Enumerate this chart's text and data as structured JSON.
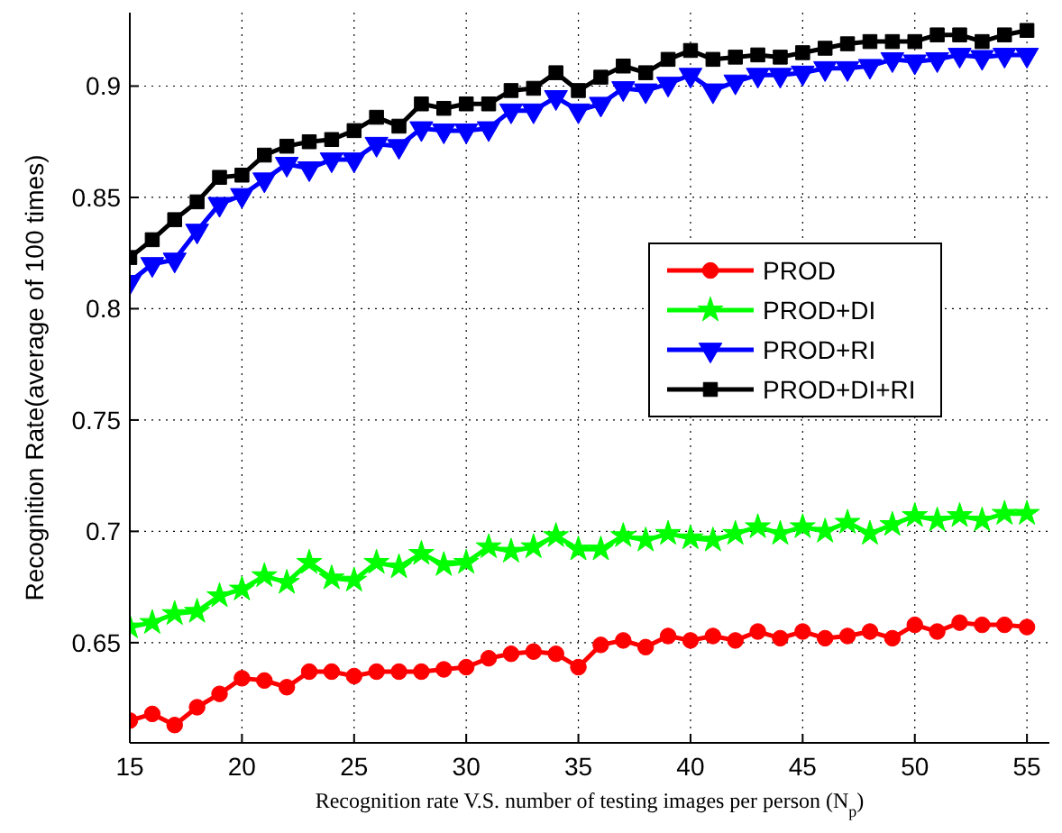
{
  "chart_data": {
    "type": "line",
    "xlabel": "Recognition rate V.S. number of testing images per person (N$_{p}$)",
    "ylabel": "Recognition Rate(average of 100 times)",
    "x": [
      15,
      16,
      17,
      18,
      19,
      20,
      21,
      22,
      23,
      24,
      25,
      26,
      27,
      28,
      29,
      30,
      31,
      32,
      33,
      34,
      35,
      36,
      37,
      38,
      39,
      40,
      41,
      42,
      43,
      44,
      45,
      46,
      47,
      48,
      49,
      50,
      51,
      52,
      53,
      54,
      55
    ],
    "xlim": [
      15,
      56
    ],
    "ylim": [
      0.605,
      0.933
    ],
    "xticks": [
      15,
      20,
      25,
      30,
      35,
      40,
      45,
      50,
      55
    ],
    "yticks": [
      0.65,
      0.7,
      0.75,
      0.8,
      0.85,
      0.9
    ],
    "grid": true,
    "legend": "right",
    "line_style": "solid",
    "series": [
      {
        "name": "PROD",
        "color": "#ff0000",
        "marker": "circle",
        "values": [
          0.615,
          0.618,
          0.613,
          0.621,
          0.627,
          0.634,
          0.633,
          0.63,
          0.637,
          0.637,
          0.635,
          0.637,
          0.637,
          0.637,
          0.638,
          0.639,
          0.643,
          0.645,
          0.646,
          0.645,
          0.639,
          0.649,
          0.651,
          0.648,
          0.653,
          0.651,
          0.653,
          0.651,
          0.655,
          0.652,
          0.655,
          0.652,
          0.653,
          0.655,
          0.652,
          0.658,
          0.655,
          0.659,
          0.658,
          0.658,
          0.657
        ]
      },
      {
        "name": "PROD+DI",
        "color": "#00ff00",
        "marker": "star",
        "values": [
          0.657,
          0.659,
          0.663,
          0.664,
          0.671,
          0.674,
          0.68,
          0.677,
          0.686,
          0.679,
          0.678,
          0.686,
          0.684,
          0.69,
          0.685,
          0.686,
          0.693,
          0.691,
          0.693,
          0.698,
          0.692,
          0.692,
          0.698,
          0.696,
          0.699,
          0.697,
          0.696,
          0.699,
          0.702,
          0.699,
          0.702,
          0.7,
          0.704,
          0.699,
          0.703,
          0.707,
          0.705,
          0.707,
          0.705,
          0.708,
          0.708
        ]
      },
      {
        "name": "PROD+RI",
        "color": "#0000ff",
        "marker": "triangle",
        "values": [
          0.812,
          0.82,
          0.822,
          0.835,
          0.847,
          0.851,
          0.858,
          0.865,
          0.863,
          0.867,
          0.867,
          0.874,
          0.873,
          0.881,
          0.88,
          0.88,
          0.881,
          0.889,
          0.889,
          0.895,
          0.889,
          0.892,
          0.899,
          0.898,
          0.901,
          0.905,
          0.898,
          0.902,
          0.905,
          0.905,
          0.906,
          0.908,
          0.908,
          0.909,
          0.912,
          0.911,
          0.912,
          0.914,
          0.913,
          0.914,
          0.914
        ]
      },
      {
        "name": "PROD+DI+RI",
        "color": "#000000",
        "marker": "square",
        "values": [
          0.823,
          0.831,
          0.84,
          0.848,
          0.859,
          0.86,
          0.869,
          0.873,
          0.875,
          0.876,
          0.88,
          0.886,
          0.882,
          0.892,
          0.89,
          0.892,
          0.892,
          0.898,
          0.899,
          0.906,
          0.898,
          0.904,
          0.909,
          0.906,
          0.912,
          0.916,
          0.912,
          0.913,
          0.914,
          0.913,
          0.915,
          0.917,
          0.919,
          0.92,
          0.92,
          0.92,
          0.923,
          0.923,
          0.92,
          0.923,
          0.925
        ]
      }
    ]
  }
}
